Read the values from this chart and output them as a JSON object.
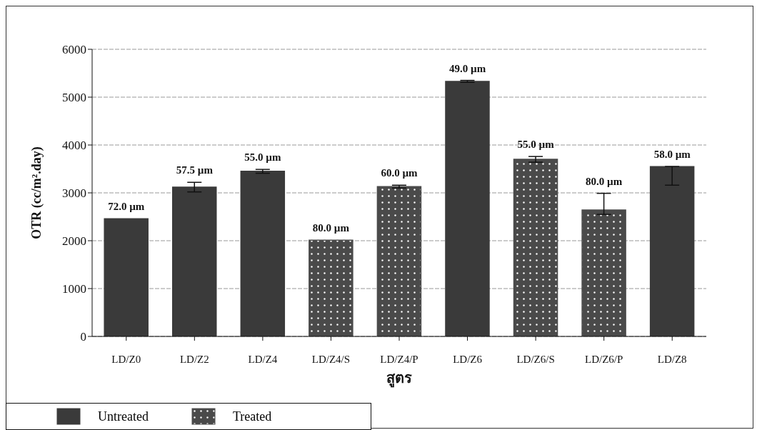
{
  "chart_data": {
    "type": "bar",
    "stacked": true,
    "ylabel": "OTR (cc/m².day)",
    "xlabel": "สูตร",
    "categories": [
      "LD/Z0",
      "LD/Z2",
      "LD/Z4",
      "LD/Z4/S",
      "LD/Z4/P",
      "LD/Z6",
      "LD/Z6/S",
      "LD/Z6/P",
      "LD/Z8"
    ],
    "series": [
      {
        "name": "Untreated",
        "color": "#3a3a3a",
        "values": [
          2460,
          3120,
          3450,
          null,
          null,
          5330,
          null,
          null,
          3550
        ],
        "errors": [
          null,
          100,
          40,
          null,
          null,
          20,
          null,
          null,
          [
            3160,
            3550
          ]
        ]
      },
      {
        "name": "Treated",
        "color": "#4a4a4a",
        "values": [
          null,
          null,
          null,
          2010,
          3130,
          null,
          3700,
          2640,
          null
        ],
        "errors": [
          null,
          null,
          null,
          null,
          30,
          null,
          60,
          [
            2550,
            2990
          ],
          null
        ]
      }
    ],
    "annotations": [
      {
        "text": "72.0 µm",
        "x": "LD/Z0",
        "y": 2460
      },
      {
        "text": "57.5 µm",
        "x": "LD/Z2",
        "y": 3220
      },
      {
        "text": "55.0 µm",
        "x": "LD/Z4",
        "y": 3490
      },
      {
        "text": "80.0 µm",
        "x": "LD/Z4/S",
        "y": 2010
      },
      {
        "text": "60.0 µm",
        "x": "LD/Z4/P",
        "y": 3160
      },
      {
        "text": "49.0 µm",
        "x": "LD/Z6",
        "y": 5350
      },
      {
        "text": "55.0 µm",
        "x": "LD/Z6/S",
        "y": 3760
      },
      {
        "text": "80.0 µm",
        "x": "LD/Z6/P",
        "y": 2990
      },
      {
        "text": "58.0 µm",
        "x": "LD/Z8",
        "y": 3550
      }
    ],
    "ylim": [
      0,
      6000
    ],
    "yticks": [
      0,
      1000,
      2000,
      3000,
      4000,
      5000,
      6000
    ],
    "grid": "y",
    "legend": "bottom left"
  }
}
